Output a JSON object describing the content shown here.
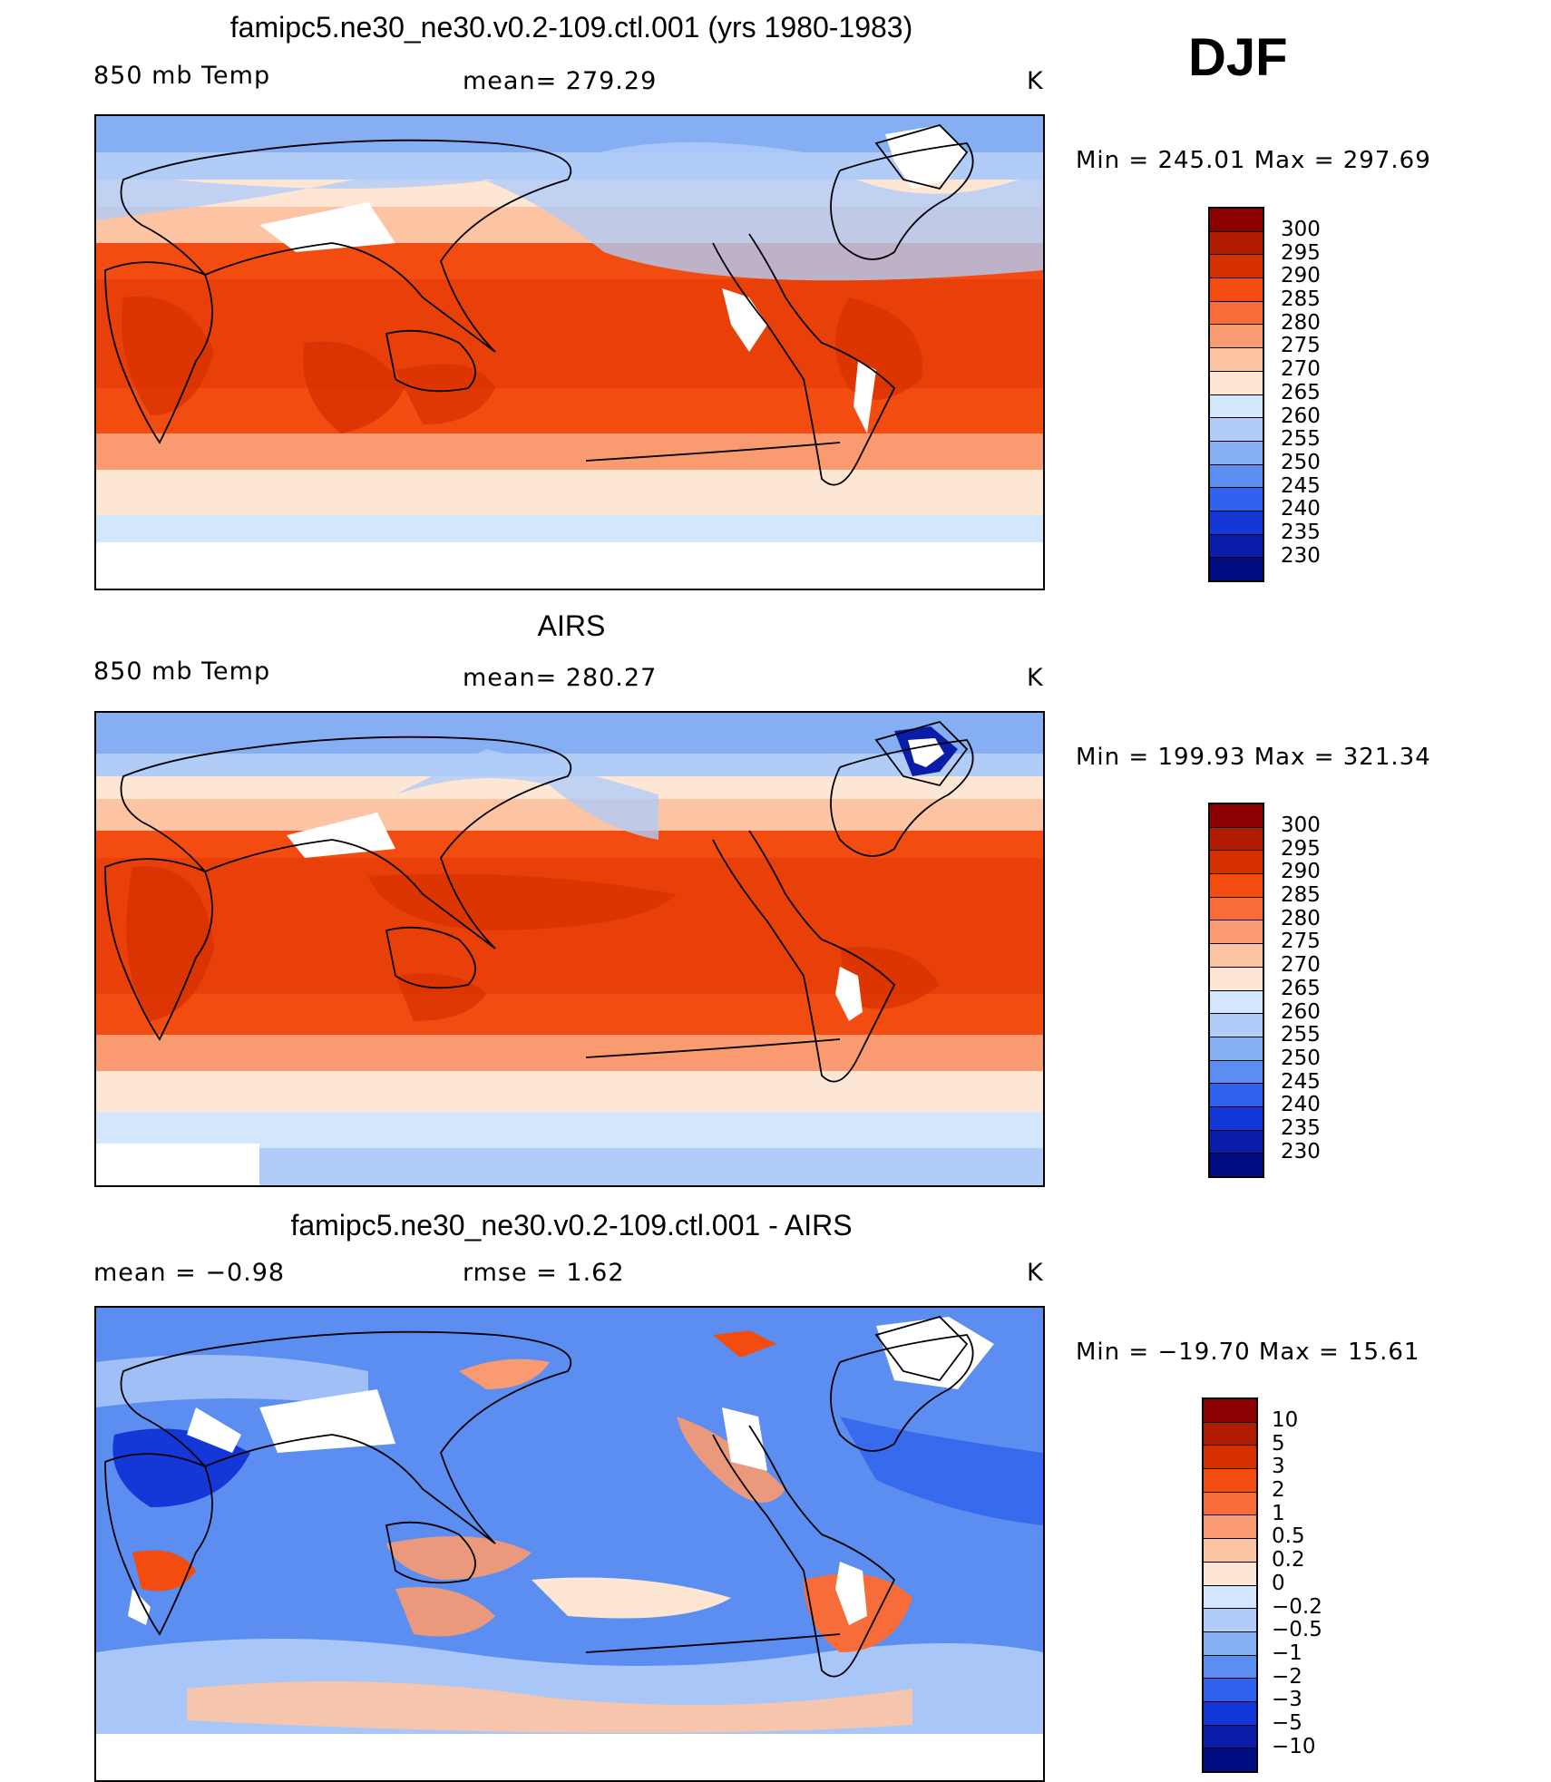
{
  "season": "DJF",
  "units": "K",
  "panels": [
    {
      "title": "famipc5.ne30_ne30.v0.2-109.ctl.001 (yrs 1980-1983)",
      "left_label": "850 mb Temp",
      "center_label": "mean=  279.29",
      "right_label": "K",
      "minmax": "Min  =  245.01  Max  =  297.69"
    },
    {
      "title": "AIRS",
      "left_label": "850 mb Temp",
      "center_label": "mean=  280.27",
      "right_label": "K",
      "minmax": "Min  =  199.93  Max  =  321.34"
    },
    {
      "title": "famipc5.ne30_ne30.v0.2-109.ctl.001 - AIRS",
      "left_label": "mean  =     −0.98",
      "center_label": "rmse  =      1.62",
      "right_label": "K",
      "minmax": "Min  = −19.70  Max  =     15.61"
    }
  ],
  "colorbars": {
    "temperature": {
      "levels": [
        "300",
        "295",
        "290",
        "285",
        "280",
        "275",
        "270",
        "265",
        "260",
        "255",
        "250",
        "245",
        "240",
        "235",
        "230"
      ],
      "colors": [
        "#8b0000",
        "#b01c00",
        "#d73000",
        "#f24c10",
        "#f86c3a",
        "#fa9a70",
        "#fdc4a4",
        "#fde6d4",
        "#d4e6fb",
        "#b0ccf7",
        "#86aef2",
        "#5b8ef0",
        "#2f62ee",
        "#1438d8",
        "#0a1ca8",
        "#000b80"
      ]
    },
    "difference": {
      "levels": [
        "10",
        "5",
        "3",
        "2",
        "1",
        "0.5",
        "0.2",
        "0",
        "−0.2",
        "−0.5",
        "−1",
        "−2",
        "−3",
        "−5",
        "−10"
      ],
      "colors": [
        "#8b0000",
        "#b01c00",
        "#d73000",
        "#f24c10",
        "#f86c3a",
        "#fa9a70",
        "#fdc4a4",
        "#fde6d4",
        "#d4e6fb",
        "#b0ccf7",
        "#86aef2",
        "#5b8ef0",
        "#2f62ee",
        "#1438d8",
        "#0a1ca8",
        "#000b80"
      ]
    }
  }
}
